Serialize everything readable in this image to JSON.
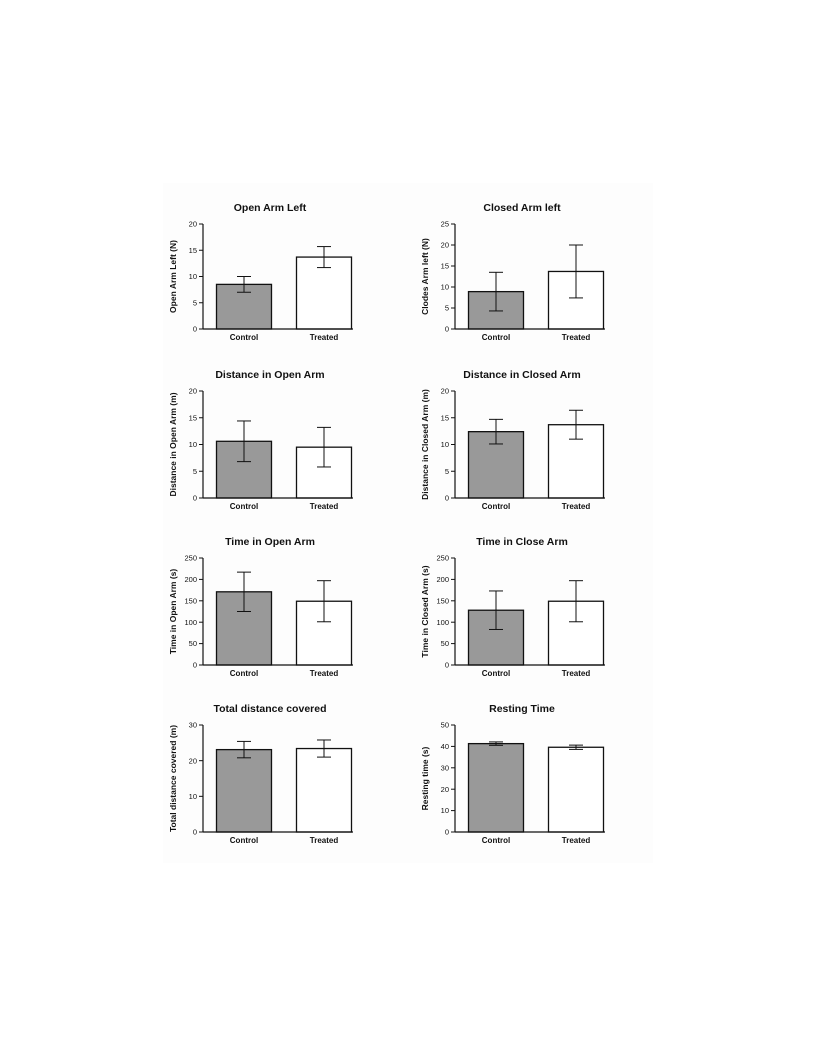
{
  "colors": {
    "control_fill": "#999999",
    "treated_fill": "#ffffff",
    "stroke": "#111111"
  },
  "chart_data": [
    {
      "type": "bar",
      "title": "Open Arm Left",
      "ylabel": "Open Arm Left (N)",
      "categories": [
        "Control",
        "Treated"
      ],
      "values": [
        8.5,
        13.7
      ],
      "errors": [
        1.5,
        2.0
      ],
      "ylim": [
        0,
        20
      ],
      "yticks": [
        0,
        5,
        10,
        15,
        20
      ]
    },
    {
      "type": "bar",
      "title": "Closed Arm left",
      "ylabel": "Clodes Arm left (N)",
      "categories": [
        "Control",
        "Treated"
      ],
      "values": [
        8.9,
        13.7
      ],
      "errors": [
        4.6,
        6.3
      ],
      "ylim": [
        0,
        25
      ],
      "yticks": [
        0,
        5,
        10,
        15,
        20,
        25
      ]
    },
    {
      "type": "bar",
      "title": "Distance in Open  Arm",
      "ylabel": "Distance in Open Arm (m)",
      "categories": [
        "Control",
        "Treated"
      ],
      "values": [
        10.6,
        9.5
      ],
      "errors": [
        3.8,
        3.7
      ],
      "ylim": [
        0,
        20
      ],
      "yticks": [
        0,
        5,
        10,
        15,
        20
      ]
    },
    {
      "type": "bar",
      "title": "Distance in Closed Arm",
      "ylabel": "Distance in Closed Arm (m)",
      "categories": [
        "Control",
        "Treated"
      ],
      "values": [
        12.4,
        13.7
      ],
      "errors": [
        2.3,
        2.7
      ],
      "ylim": [
        0,
        20
      ],
      "yticks": [
        0,
        5,
        10,
        15,
        20
      ]
    },
    {
      "type": "bar",
      "title": "Time in Open Arm",
      "ylabel": "Time in Open Arm (s)",
      "categories": [
        "Control",
        "Treated"
      ],
      "values": [
        171,
        149
      ],
      "errors": [
        46,
        48
      ],
      "ylim": [
        0,
        250
      ],
      "yticks": [
        0,
        50,
        100,
        150,
        200,
        250
      ]
    },
    {
      "type": "bar",
      "title": "Time in Close Arm",
      "ylabel": "Time in Closed Arm (s)",
      "categories": [
        "Control",
        "Treated"
      ],
      "values": [
        128,
        149
      ],
      "errors": [
        45,
        48
      ],
      "ylim": [
        0,
        250
      ],
      "yticks": [
        0,
        50,
        100,
        150,
        200,
        250
      ]
    },
    {
      "type": "bar",
      "title": "Total distance covered",
      "ylabel": "Total distance covered (m)",
      "categories": [
        "Control",
        "Treated"
      ],
      "values": [
        23.1,
        23.4
      ],
      "errors": [
        2.3,
        2.4
      ],
      "ylim": [
        0,
        30
      ],
      "yticks": [
        0,
        10,
        20,
        30
      ]
    },
    {
      "type": "bar",
      "title": "Resting Time",
      "ylabel": "Resting time (s)",
      "categories": [
        "Control",
        "Treated"
      ],
      "values": [
        41.3,
        39.6
      ],
      "errors": [
        0.8,
        1.0
      ],
      "ylim": [
        0,
        50
      ],
      "yticks": [
        0,
        10,
        20,
        30,
        40,
        50
      ]
    }
  ]
}
